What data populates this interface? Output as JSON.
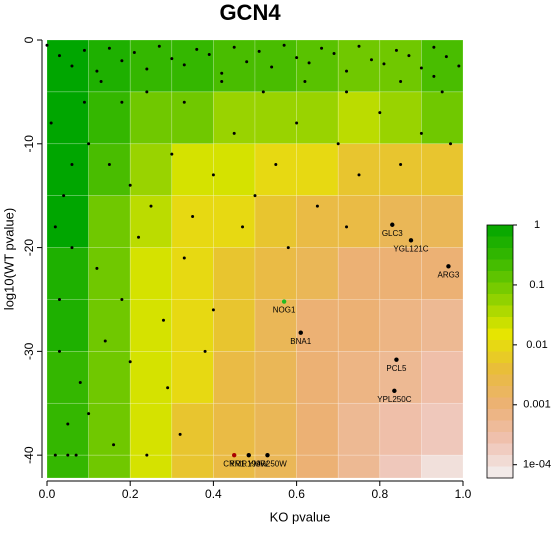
{
  "chart_data": {
    "type": "scatter",
    "title": "GCN4",
    "x_label": "KO pvalue",
    "y_label": "log10(WT pvalue)",
    "xlim": [
      0,
      1
    ],
    "ylim": [
      -42.2,
      0
    ],
    "xticks": [
      {
        "value": 0,
        "label": "0.0"
      },
      0.2,
      0.4,
      0.6,
      0.8,
      {
        "value": 1,
        "label": "1.0"
      }
    ],
    "yticks": [
      0,
      -10,
      -20,
      -30,
      -40
    ],
    "heatmap": {
      "xbins": [
        0,
        0.1,
        0.2,
        0.3,
        0.4,
        0.5,
        0.6,
        0.7,
        0.8,
        0.9,
        1
      ],
      "ybins": [
        0,
        -5,
        -10,
        -15,
        -20,
        -25,
        -30,
        -35,
        -40,
        -42.2
      ],
      "values": [
        [
          1,
          0.5,
          0.3,
          0.3,
          0.2,
          0.2,
          0.15,
          0.1,
          0.1,
          0.2
        ],
        [
          1,
          0.3,
          0.1,
          0.1,
          0.05,
          0.05,
          0.05,
          0.03,
          0.05,
          0.1
        ],
        [
          1,
          0.2,
          0.05,
          0.02,
          0.02,
          0.01,
          0.01,
          0.005,
          0.005,
          0.005
        ],
        [
          1,
          0.1,
          0.03,
          0.01,
          0.01,
          0.005,
          0.003,
          0.003,
          0.002,
          0.002
        ],
        [
          0.5,
          0.1,
          0.02,
          0.01,
          0.005,
          0.003,
          0.002,
          0.001,
          0.001,
          0.001
        ],
        [
          0.5,
          0.1,
          0.02,
          0.01,
          0.005,
          0.002,
          0.001,
          0.001,
          0.0007,
          0.0005
        ],
        [
          0.3,
          0.1,
          0.02,
          0.01,
          0.003,
          0.002,
          0.001,
          0.0007,
          0.0005,
          0.0003
        ],
        [
          0.3,
          0.1,
          0.02,
          0.005,
          0.003,
          0.002,
          0.001,
          0.0005,
          0.0003,
          0.0002
        ],
        [
          0.3,
          0.1,
          0.02,
          0.005,
          0.003,
          0.002,
          0.001,
          0.0005,
          0.0002,
          0.0001
        ]
      ]
    },
    "clim": [
      6e-05,
      1
    ],
    "colorscale": [
      "#00a600",
      "#3cba00",
      "#8bd000",
      "#e6e600",
      "#e9bd3a",
      "#ecb176",
      "#efc2b3",
      "#f2f2f2"
    ],
    "cticks": [
      1,
      0.1,
      0.01,
      0.001,
      {
        "value": 0.0001,
        "label": "1e-04"
      }
    ],
    "series": [
      {
        "color": "#000000",
        "x": [
          0.0,
          0.03,
          0.06,
          0.09,
          0.12,
          0.15,
          0.18,
          0.21,
          0.24,
          0.27,
          0.3,
          0.33,
          0.36,
          0.39,
          0.42,
          0.45,
          0.48,
          0.51,
          0.54,
          0.57,
          0.6,
          0.63,
          0.66,
          0.69,
          0.72,
          0.75,
          0.78,
          0.81,
          0.84,
          0.87,
          0.9,
          0.93,
          0.96,
          0.99,
          0.1,
          0.15,
          0.2,
          0.25,
          0.3,
          0.35,
          0.4,
          0.45,
          0.5,
          0.55,
          0.6,
          0.65,
          0.7,
          0.75,
          0.8,
          0.9,
          0.95,
          0.06,
          0.12,
          0.18,
          0.22,
          0.28,
          0.33,
          0.4,
          0.47,
          0.03,
          0.08,
          0.14,
          0.2,
          0.29,
          0.05,
          0.1,
          0.16,
          0.24,
          0.02,
          0.05,
          0.07,
          0.03,
          0.04,
          0.06,
          0.01,
          0.02,
          0.09,
          0.13,
          0.18,
          0.24,
          0.33,
          0.42,
          0.52,
          0.62,
          0.72,
          0.85,
          0.93,
          0.38,
          0.32,
          0.72,
          0.58,
          0.85,
          0.97
        ],
        "y": [
          -0.5,
          -1.5,
          -2.5,
          -1,
          -3,
          -0.8,
          -2,
          -1.2,
          -2.8,
          -0.6,
          -1.8,
          -2.4,
          -0.9,
          -1.4,
          -3.2,
          -0.7,
          -2.1,
          -1.1,
          -2.6,
          -0.5,
          -1.7,
          -2.2,
          -0.8,
          -1.3,
          -3,
          -0.6,
          -1.9,
          -2.3,
          -1,
          -1.5,
          -2.7,
          -0.7,
          -1.6,
          -2.5,
          -10,
          -12,
          -14,
          -16,
          -11,
          -17,
          -13,
          -9,
          -15,
          -12,
          -8,
          -16,
          -10,
          -13,
          -7,
          -9,
          -5,
          -20,
          -22,
          -25,
          -19,
          -27,
          -21,
          -26,
          -18,
          -30,
          -33,
          -29,
          -31,
          -33.5,
          -37,
          -36,
          -39,
          -40,
          -40,
          -40,
          -40,
          -25,
          -15,
          -12,
          -8,
          -18,
          -6,
          -4,
          -6,
          -5,
          -6,
          -4,
          -5,
          -4,
          -5,
          -4,
          -3.5,
          -30,
          -38,
          -18,
          -20,
          -12,
          -10
        ]
      }
    ],
    "points": [
      {
        "label": "GLC3",
        "x": 0.83,
        "y": -17.8,
        "color": "#000000"
      },
      {
        "label": "YGL121C",
        "x": 0.875,
        "y": -19.3,
        "color": "#000000"
      },
      {
        "label": "ARG3",
        "x": 0.965,
        "y": -21.8,
        "color": "#000000"
      },
      {
        "label": "NOG1",
        "x": 0.57,
        "y": -25.2,
        "color": "#22bb22"
      },
      {
        "label": "BNA1",
        "x": 0.61,
        "y": -28.2,
        "color": "#000000"
      },
      {
        "label": "PCL5",
        "x": 0.84,
        "y": -30.8,
        "color": "#000000"
      },
      {
        "label": "YPL250C",
        "x": 0.835,
        "y": -33.8,
        "color": "#000000"
      },
      {
        "label": "CRR1",
        "x": 0.45,
        "y": -40,
        "color": "#aa0000"
      },
      {
        "label": "YMR199W",
        "x": 0.485,
        "y": -40,
        "color": "#000000"
      },
      {
        "label": "YMR250W",
        "x": 0.53,
        "y": -40,
        "color": "#000000"
      }
    ]
  }
}
